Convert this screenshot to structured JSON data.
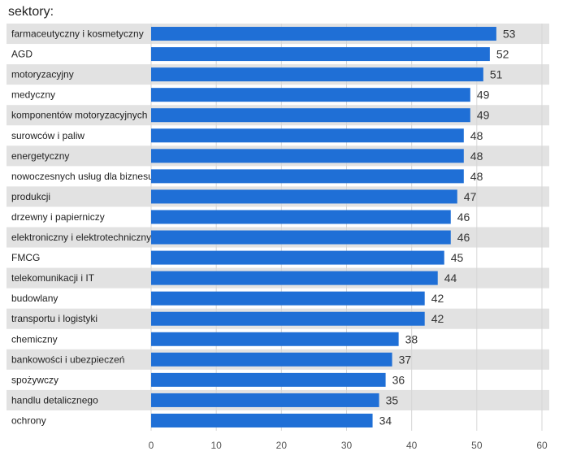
{
  "chart_data": {
    "type": "bar",
    "orientation": "horizontal",
    "title": "sektory:",
    "categories": [
      "farmaceutyczny i kosmetyczny",
      "AGD",
      "motoryzacyjny",
      "medyczny",
      "komponentów motoryzacyjnych",
      "surowców i paliw",
      "energetyczny",
      "nowoczesnych usług dla biznesu",
      "produkcji",
      "drzewny i papierniczy",
      "elektroniczny i elektrotechniczny",
      "FMCG",
      "telekomunikacji i IT",
      "budowlany",
      "transportu i logistyki",
      "chemiczny",
      "bankowości i ubezpieczeń",
      "spożywczy",
      "handlu detalicznego",
      "ochrony"
    ],
    "values": [
      53,
      52,
      51,
      49,
      49,
      48,
      48,
      48,
      47,
      46,
      46,
      45,
      44,
      42,
      42,
      38,
      37,
      36,
      35,
      34
    ],
    "xlim": [
      0,
      60
    ],
    "xticks": [
      0,
      10,
      20,
      30,
      40,
      50,
      60
    ],
    "xlabel": "",
    "ylabel": "",
    "grid": true,
    "bar_color": "#1f6fd6",
    "stripe_color": "#e2e2e2"
  }
}
